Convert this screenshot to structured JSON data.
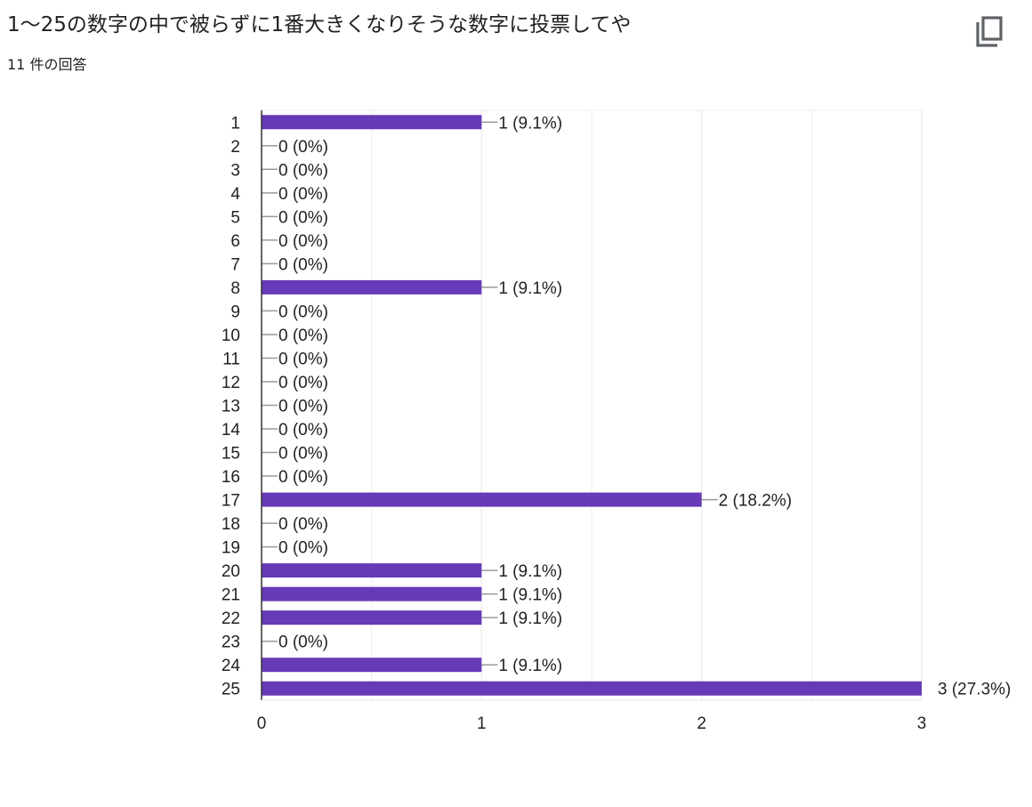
{
  "question": {
    "title": "1〜25の数字の中で被らずに1番大きくなりそうな数字に投票してや",
    "response_count": "11 件の回答"
  },
  "toolbar": {
    "copy_icon": "copy-icon"
  },
  "colors": {
    "bar": "#673ab7",
    "grid": "#eeeeee",
    "axis": "#333333",
    "leader": "#999999",
    "text": "#222222"
  },
  "chart_data": {
    "type": "bar",
    "orientation": "horizontal",
    "categories": [
      "1",
      "2",
      "3",
      "4",
      "5",
      "6",
      "7",
      "8",
      "9",
      "10",
      "11",
      "12",
      "13",
      "14",
      "15",
      "16",
      "17",
      "18",
      "19",
      "20",
      "21",
      "22",
      "23",
      "24",
      "25"
    ],
    "values": [
      1,
      0,
      0,
      0,
      0,
      0,
      0,
      1,
      0,
      0,
      0,
      0,
      0,
      0,
      0,
      0,
      2,
      0,
      0,
      1,
      1,
      1,
      0,
      1,
      3
    ],
    "data_labels": [
      "1 (9.1%)",
      "0 (0%)",
      "0 (0%)",
      "0 (0%)",
      "0 (0%)",
      "0 (0%)",
      "0 (0%)",
      "1 (9.1%)",
      "0 (0%)",
      "0 (0%)",
      "0 (0%)",
      "0 (0%)",
      "0 (0%)",
      "0 (0%)",
      "0 (0%)",
      "0 (0%)",
      "2 (18.2%)",
      "0 (0%)",
      "0 (0%)",
      "1 (9.1%)",
      "1 (9.1%)",
      "1 (9.1%)",
      "0 (0%)",
      "1 (9.1%)",
      "3 (27.3%)"
    ],
    "xlim": [
      0,
      3
    ],
    "x_ticks": [
      "0",
      "1",
      "2",
      "3"
    ],
    "title": "",
    "xlabel": "",
    "ylabel": "",
    "grid": true,
    "legend": "none"
  }
}
